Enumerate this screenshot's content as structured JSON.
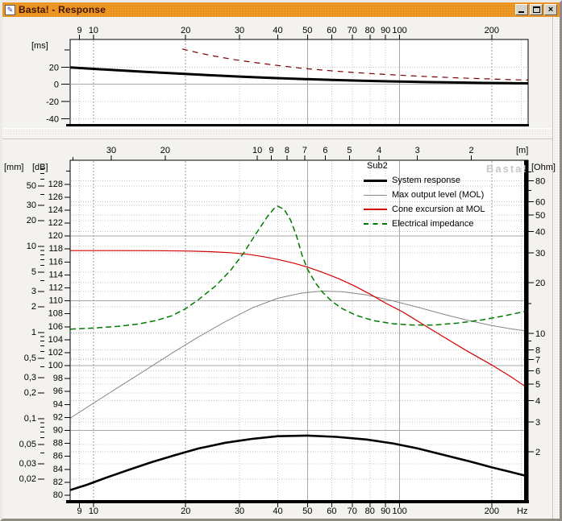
{
  "window": {
    "title": "Basta! - Response",
    "buttons": [
      {
        "name": "minimize"
      },
      {
        "name": "maximize"
      },
      {
        "name": "close"
      }
    ]
  },
  "colors": {
    "titlebar_light": "#ef9b2d",
    "titlebar_dark": "#dd8307",
    "title_text": "#401602",
    "plot_background": "#ffffff",
    "grid_dotted": "#c0c0c0",
    "grid_solid": "#a8a8a8",
    "grid_dashed": "#9a9a9a",
    "watermark": "#c8c8c8"
  },
  "chart_data": [
    {
      "id": "delay-panel",
      "type": "line",
      "x_axis": {
        "unit": "",
        "scale": "log",
        "lim": [
          8.39,
          263
        ],
        "ticks": [
          9,
          10,
          20,
          30,
          40,
          50,
          60,
          70,
          80,
          90,
          100,
          200
        ]
      },
      "y_axis": {
        "unit": "[ms]",
        "scale": "linear",
        "lim": [
          -47,
          52
        ],
        "ticks": [
          20,
          0,
          -20,
          -40
        ],
        "minor": [
          40
        ]
      },
      "grid": {
        "v_solid": [
          50,
          100
        ],
        "v_dashed": [
          10,
          20,
          200
        ],
        "v_dotted": [
          9,
          30,
          40,
          60,
          70,
          80,
          90,
          250
        ],
        "h_solid": [
          0
        ],
        "h_dotted": [
          20,
          -20,
          -40
        ]
      },
      "series": [
        {
          "name": "delay-solid",
          "axis": "ms",
          "color": "#000000",
          "width": 3,
          "dash": "",
          "points": [
            [
              8.4,
              19.6
            ],
            [
              10,
              17.9
            ],
            [
              12,
              16.2
            ],
            [
              15,
              14.3
            ],
            [
              19,
              12.4
            ],
            [
              24,
              10.5
            ],
            [
              30,
              8.9
            ],
            [
              38,
              7.4
            ],
            [
              48,
              6.1
            ],
            [
              60,
              5.0
            ],
            [
              75,
              4.1
            ],
            [
              95,
              3.3
            ],
            [
              120,
              2.6
            ],
            [
              150,
              2.1
            ],
            [
              190,
              1.6
            ],
            [
              230,
              1.3
            ],
            [
              263,
              1.1
            ]
          ]
        },
        {
          "name": "delay-dashed",
          "axis": "ms",
          "color": "#7a0202",
          "width": 1.2,
          "dash": "7,6",
          "points": [
            [
              19.5,
              41
            ],
            [
              22,
              36.5
            ],
            [
              25,
              32.5
            ],
            [
              29,
              28.5
            ],
            [
              34,
              25.0
            ],
            [
              40,
              21.8
            ],
            [
              48,
              18.6
            ],
            [
              58,
              16.0
            ],
            [
              70,
              13.8
            ],
            [
              85,
              11.9
            ],
            [
              105,
              10.2
            ],
            [
              130,
              8.6
            ],
            [
              160,
              7.3
            ],
            [
              200,
              6.1
            ],
            [
              230,
              5.4
            ],
            [
              263,
              4.9
            ]
          ]
        }
      ]
    },
    {
      "id": "response-panel",
      "type": "line",
      "annotation": "Sub2",
      "watermark": "Basta!",
      "x_axis": {
        "unit": "Hz",
        "scale": "log",
        "lim": [
          8.39,
          263
        ],
        "ticks": [
          9,
          10,
          20,
          30,
          40,
          50,
          60,
          70,
          80,
          90,
          100,
          200
        ]
      },
      "top_axis": {
        "unit": "[m]",
        "speed_of_sound": 343,
        "ticks": [
          30,
          20,
          10,
          9,
          8,
          7,
          6,
          5,
          4,
          3,
          2
        ],
        "minor": [
          40
        ]
      },
      "y_axes": [
        {
          "id": "mm",
          "unit": "[mm]",
          "scale": "log",
          "lim": [
            0.0109,
            100
          ],
          "side": "left",
          "ticks": [
            {
              "v": 50,
              "l": "50"
            },
            {
              "v": 30,
              "l": "30"
            },
            {
              "v": 20,
              "l": "20"
            },
            {
              "v": 10,
              "l": "10"
            },
            {
              "v": 5,
              "l": "5"
            },
            {
              "v": 3,
              "l": "3"
            },
            {
              "v": 2,
              "l": "2"
            },
            {
              "v": 1,
              "l": "1"
            },
            {
              "v": 0.5,
              "l": "0,5"
            },
            {
              "v": 0.3,
              "l": "0,3"
            },
            {
              "v": 0.2,
              "l": "0,2"
            },
            {
              "v": 0.1,
              "l": "0,1"
            },
            {
              "v": 0.05,
              "l": "0,05"
            },
            {
              "v": 0.03,
              "l": "0,03"
            },
            {
              "v": 0.02,
              "l": "0,02"
            }
          ],
          "minor": [
            90,
            80,
            70,
            60,
            40,
            9,
            8,
            7,
            6,
            4,
            0.9,
            0.8,
            0.7,
            0.6,
            0.4,
            0.09,
            0.08,
            0.07,
            0.06,
            0.04
          ]
        },
        {
          "id": "db",
          "unit": "[dB]",
          "scale": "linear",
          "lim": [
            79,
            131.7
          ],
          "side": "left",
          "ticks": [
            {
              "v": 128,
              "l": "128"
            },
            {
              "v": 126,
              "l": "126"
            },
            {
              "v": 124,
              "l": "124"
            },
            {
              "v": 122,
              "l": "122"
            },
            {
              "v": 120,
              "l": "120"
            },
            {
              "v": 118,
              "l": "118"
            },
            {
              "v": 116,
              "l": "116"
            },
            {
              "v": 114,
              "l": "114"
            },
            {
              "v": 112,
              "l": "112"
            },
            {
              "v": 110,
              "l": "110"
            },
            {
              "v": 108,
              "l": "108"
            },
            {
              "v": 106,
              "l": "106"
            },
            {
              "v": 104,
              "l": "104"
            },
            {
              "v": 102,
              "l": "102"
            },
            {
              "v": 100,
              "l": "100"
            },
            {
              "v": 98,
              "l": "98"
            },
            {
              "v": 96,
              "l": "96"
            },
            {
              "v": 94,
              "l": "94"
            },
            {
              "v": 92,
              "l": "92"
            },
            {
              "v": 90,
              "l": "90"
            },
            {
              "v": 88,
              "l": "88"
            },
            {
              "v": 86,
              "l": "86"
            },
            {
              "v": 84,
              "l": "84"
            },
            {
              "v": 82,
              "l": "82"
            },
            {
              "v": 80,
              "l": "80"
            }
          ],
          "minor": [
            130
          ]
        },
        {
          "id": "ohm",
          "unit": "[Ohm]",
          "scale": "log",
          "lim": [
            1.011,
            105.6
          ],
          "side": "right",
          "ticks": [
            {
              "v": 80,
              "l": "80"
            },
            {
              "v": 60,
              "l": "60"
            },
            {
              "v": 50,
              "l": "50"
            },
            {
              "v": 40,
              "l": "40"
            },
            {
              "v": 30,
              "l": "30"
            },
            {
              "v": 20,
              "l": "20"
            },
            {
              "v": 10,
              "l": "10"
            },
            {
              "v": 8,
              "l": "8"
            },
            {
              "v": 7,
              "l": "7"
            },
            {
              "v": 6,
              "l": "6"
            },
            {
              "v": 5,
              "l": "5"
            },
            {
              "v": 4,
              "l": "4"
            },
            {
              "v": 3,
              "l": "3"
            },
            {
              "v": 2,
              "l": "2"
            }
          ],
          "minor": [
            90,
            70,
            15,
            9
          ]
        }
      ],
      "grid": {
        "v_solid": [
          50,
          100
        ],
        "v_dashed": [
          10,
          20,
          200
        ],
        "v_dotted": [
          9,
          30,
          40,
          60,
          70,
          80,
          90,
          250
        ],
        "h_solid_db": [
          120,
          110,
          100,
          90
        ],
        "h_dotted_ohm": [
          80,
          60,
          50,
          40,
          30,
          20,
          10,
          8,
          7,
          6,
          5,
          4,
          3,
          2
        ],
        "h_dotted_mm": [
          50,
          30,
          20,
          10,
          5,
          3,
          2,
          1,
          0.5,
          0.3,
          0.2,
          0.1,
          0.05,
          0.03,
          0.02
        ]
      },
      "legend": [
        {
          "label": "System response",
          "color": "#000000",
          "thickness": 3,
          "dash": "solid"
        },
        {
          "label": "Max output level (MOL)",
          "color": "#878787",
          "thickness": 1,
          "dash": "solid"
        },
        {
          "label": "Cone excursion at MOL",
          "color": "#d40000",
          "thickness": 2,
          "dash": "solid"
        },
        {
          "label": "Electrical impedance",
          "color": "#007b00",
          "thickness": 2,
          "dash": "dashed"
        }
      ],
      "series": [
        {
          "name": "system-response",
          "axis": "db",
          "color": "#000000",
          "width": 2.6,
          "dash": "",
          "points": [
            [
              8.4,
              80.8
            ],
            [
              9.5,
              81.6
            ],
            [
              11,
              82.7
            ],
            [
              13,
              83.9
            ],
            [
              15.5,
              85.1
            ],
            [
              18.5,
              86.2
            ],
            [
              22,
              87.2
            ],
            [
              27,
              88.1
            ],
            [
              33,
              88.7
            ],
            [
              40,
              89.1
            ],
            [
              50,
              89.2
            ],
            [
              62,
              89.0
            ],
            [
              78,
              88.6
            ],
            [
              95,
              88.0
            ],
            [
              115,
              87.2
            ],
            [
              140,
              86.2
            ],
            [
              170,
              85.2
            ],
            [
              200,
              84.3
            ],
            [
              230,
              83.6
            ],
            [
              263,
              82.9
            ]
          ]
        },
        {
          "name": "max-output-level",
          "axis": "db",
          "color": "#878787",
          "width": 1,
          "dash": "",
          "points": [
            [
              8.4,
              91.9
            ],
            [
              10,
              94.2
            ],
            [
              12,
              96.6
            ],
            [
              15,
              99.5
            ],
            [
              18,
              101.9
            ],
            [
              22,
              104.4
            ],
            [
              27,
              106.8
            ],
            [
              33,
              108.9
            ],
            [
              40,
              110.4
            ],
            [
              48,
              111.2
            ],
            [
              56,
              111.5
            ],
            [
              65,
              111.4
            ],
            [
              78,
              110.9
            ],
            [
              95,
              110.0
            ],
            [
              115,
              109.0
            ],
            [
              140,
              107.9
            ],
            [
              170,
              106.9
            ],
            [
              200,
              106.2
            ],
            [
              230,
              105.7
            ],
            [
              263,
              105.3
            ]
          ]
        },
        {
          "name": "cone-excursion",
          "axis": "mm",
          "color": "#d40000",
          "width": 1.2,
          "dash": "",
          "points": [
            [
              8.4,
              8.95
            ],
            [
              12,
              8.95
            ],
            [
              16,
              8.92
            ],
            [
              20,
              8.85
            ],
            [
              24,
              8.7
            ],
            [
              28,
              8.45
            ],
            [
              32,
              8.1
            ],
            [
              36,
              7.6
            ],
            [
              40,
              7.05
            ],
            [
              45,
              6.4
            ],
            [
              50,
              5.75
            ],
            [
              56,
              5.0
            ],
            [
              63,
              4.25
            ],
            [
              71,
              3.5
            ],
            [
              80,
              2.8
            ],
            [
              90,
              2.2
            ],
            [
              102,
              1.75
            ],
            [
              119,
              1.25
            ],
            [
              140,
              0.88
            ],
            [
              165,
              0.62
            ],
            [
              200,
              0.42
            ],
            [
              230,
              0.31
            ],
            [
              263,
              0.225
            ]
          ]
        },
        {
          "name": "electrical-impedance",
          "axis": "ohm",
          "color": "#007b00",
          "width": 1.5,
          "dash": "7,4",
          "points": [
            [
              8.4,
              10.6
            ],
            [
              10,
              10.75
            ],
            [
              12,
              11.0
            ],
            [
              14,
              11.35
            ],
            [
              16,
              11.9
            ],
            [
              18,
              12.7
            ],
            [
              20,
              14.0
            ],
            [
              22,
              15.8
            ],
            [
              25,
              19.0
            ],
            [
              28,
              23.5
            ],
            [
              31,
              30.0
            ],
            [
              34,
              39.0
            ],
            [
              37,
              49.0
            ],
            [
              39,
              55.0
            ],
            [
              40,
              56.5
            ],
            [
              42,
              54.0
            ],
            [
              44,
              47.0
            ],
            [
              46,
              38.0
            ],
            [
              48,
              29.0
            ],
            [
              50,
              24.0
            ],
            [
              53,
              20.0
            ],
            [
              56,
              17.5
            ],
            [
              60,
              15.5
            ],
            [
              65,
              14.0
            ],
            [
              72,
              12.8
            ],
            [
              82,
              11.9
            ],
            [
              95,
              11.4
            ],
            [
              110,
              11.2
            ],
            [
              130,
              11.2
            ],
            [
              155,
              11.5
            ],
            [
              185,
              12.0
            ],
            [
              220,
              12.7
            ],
            [
              263,
              13.6
            ]
          ]
        }
      ]
    }
  ]
}
